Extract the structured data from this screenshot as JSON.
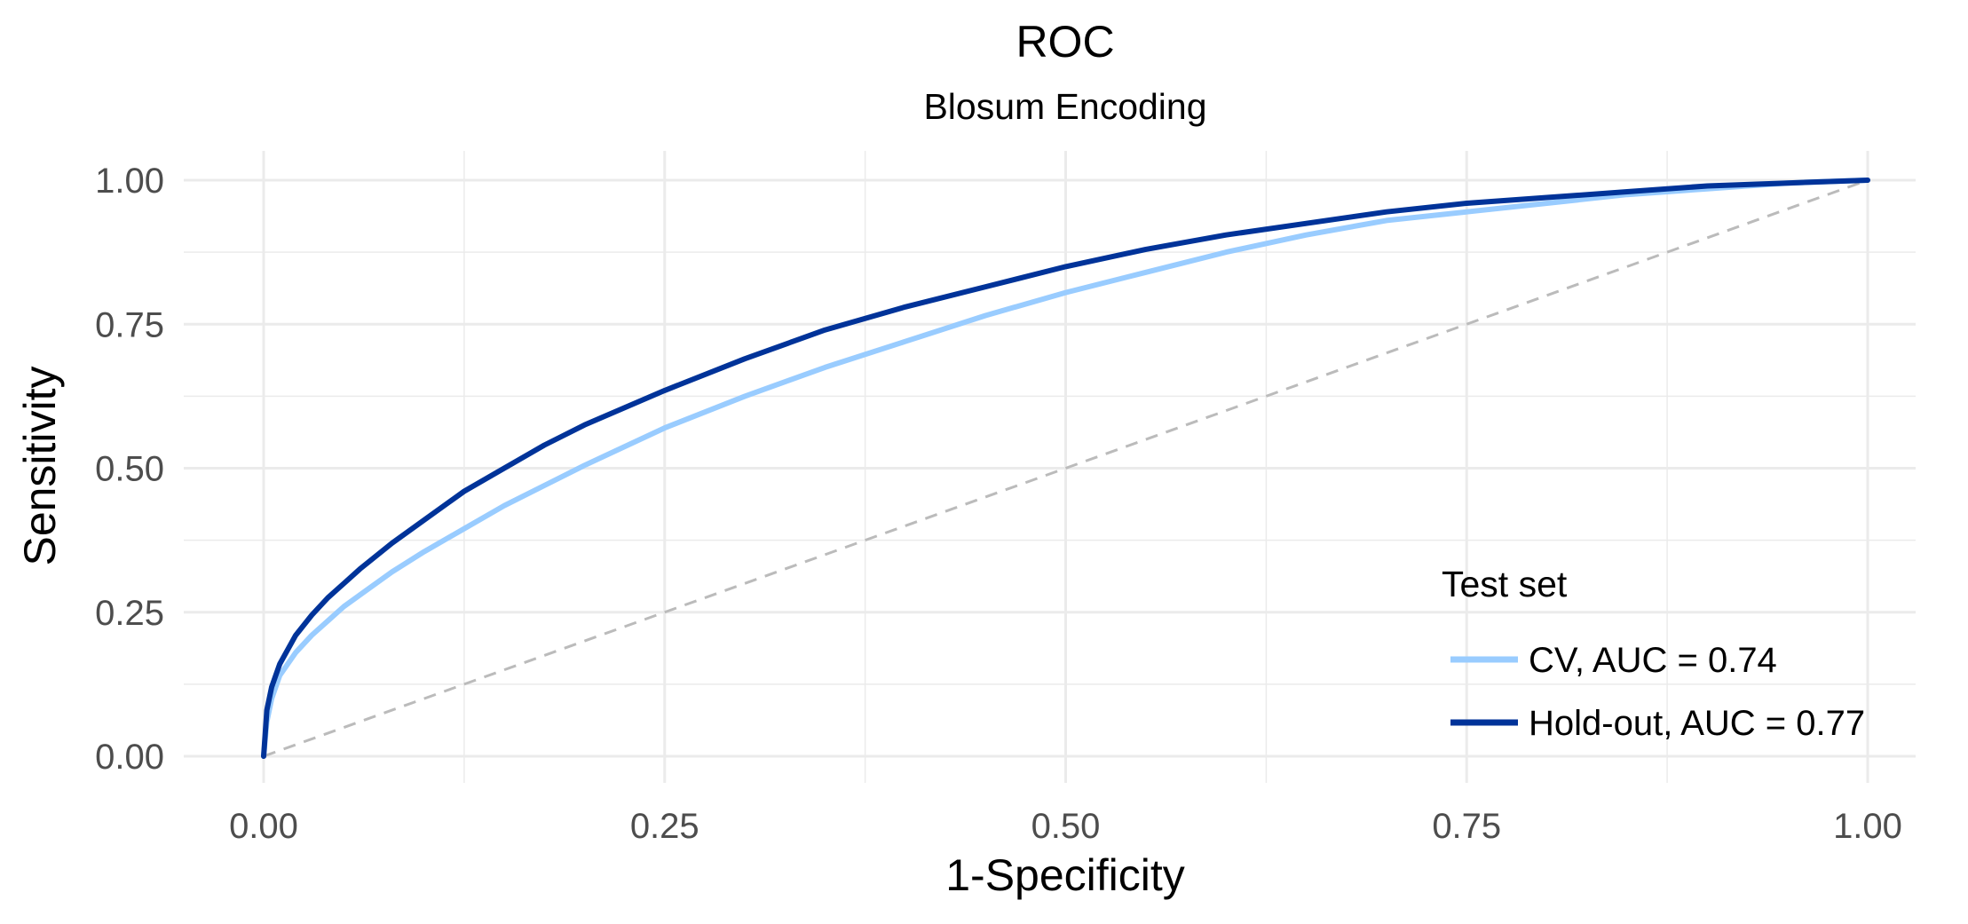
{
  "chart_data": {
    "type": "line",
    "title": "ROC",
    "subtitle": "Blosum Encoding",
    "xlabel": "1-Specificity",
    "ylabel": "Sensitivity",
    "xlim": [
      0,
      1
    ],
    "ylim": [
      0,
      1
    ],
    "x_ticks": [
      0,
      0.25,
      0.5,
      0.75,
      1
    ],
    "y_ticks": [
      0,
      0.25,
      0.5,
      0.75,
      1
    ],
    "x_tick_labels": [
      "0.00",
      "0.25",
      "0.50",
      "0.75",
      "1.00"
    ],
    "y_tick_labels": [
      "0.00",
      "0.25",
      "0.50",
      "0.75",
      "1.00"
    ],
    "grid": true,
    "legend": {
      "title": "Test set",
      "position": "bottom-right"
    },
    "series": [
      {
        "name": "CV, AUC = 0.74",
        "color": "#99ccff",
        "x": [
          0,
          0.002,
          0.005,
          0.01,
          0.02,
          0.03,
          0.04,
          0.05,
          0.06,
          0.08,
          0.1,
          0.125,
          0.15,
          0.175,
          0.2,
          0.25,
          0.3,
          0.35,
          0.4,
          0.45,
          0.5,
          0.55,
          0.6,
          0.65,
          0.7,
          0.75,
          0.8,
          0.85,
          0.9,
          0.95,
          1.0
        ],
        "y": [
          0,
          0.06,
          0.1,
          0.14,
          0.18,
          0.21,
          0.235,
          0.26,
          0.28,
          0.32,
          0.355,
          0.395,
          0.435,
          0.47,
          0.505,
          0.57,
          0.625,
          0.675,
          0.72,
          0.765,
          0.805,
          0.84,
          0.875,
          0.905,
          0.93,
          0.945,
          0.96,
          0.975,
          0.985,
          0.995,
          1.0
        ]
      },
      {
        "name": "Hold-out, AUC = 0.77",
        "color": "#003399",
        "x": [
          0,
          0.002,
          0.005,
          0.01,
          0.02,
          0.03,
          0.04,
          0.05,
          0.06,
          0.08,
          0.1,
          0.125,
          0.15,
          0.175,
          0.2,
          0.25,
          0.3,
          0.35,
          0.4,
          0.45,
          0.5,
          0.55,
          0.6,
          0.65,
          0.7,
          0.75,
          0.8,
          0.85,
          0.9,
          0.95,
          1.0
        ],
        "y": [
          0,
          0.08,
          0.12,
          0.16,
          0.21,
          0.245,
          0.275,
          0.3,
          0.325,
          0.37,
          0.41,
          0.46,
          0.5,
          0.54,
          0.575,
          0.635,
          0.69,
          0.74,
          0.78,
          0.815,
          0.85,
          0.88,
          0.905,
          0.925,
          0.945,
          0.96,
          0.97,
          0.98,
          0.99,
          0.995,
          1.0
        ]
      },
      {
        "name": "",
        "color": "#bbbbbb",
        "dashed": true,
        "x": [
          0,
          1
        ],
        "y": [
          0,
          1
        ]
      }
    ]
  }
}
